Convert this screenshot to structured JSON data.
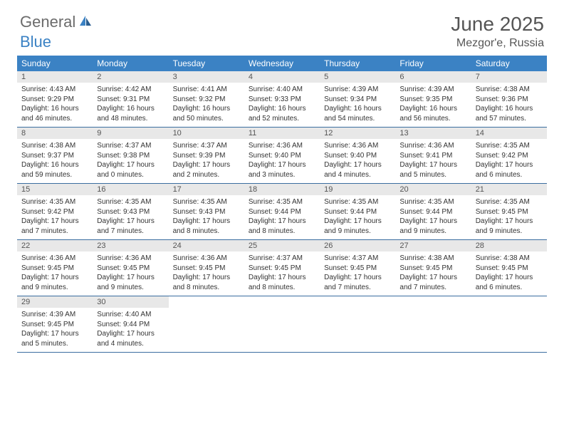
{
  "logo": {
    "general": "General",
    "blue": "Blue"
  },
  "title": "June 2025",
  "location": "Mezgor'e, Russia",
  "colors": {
    "header_bg": "#3b82c4",
    "daynum_bg": "#e8e8e8",
    "border": "#3b6ea0",
    "text": "#333333",
    "title_text": "#555555"
  },
  "weekdays": [
    "Sunday",
    "Monday",
    "Tuesday",
    "Wednesday",
    "Thursday",
    "Friday",
    "Saturday"
  ],
  "days": [
    {
      "n": "1",
      "sr": "Sunrise: 4:43 AM",
      "ss": "Sunset: 9:29 PM",
      "d1": "Daylight: 16 hours",
      "d2": "and 46 minutes."
    },
    {
      "n": "2",
      "sr": "Sunrise: 4:42 AM",
      "ss": "Sunset: 9:31 PM",
      "d1": "Daylight: 16 hours",
      "d2": "and 48 minutes."
    },
    {
      "n": "3",
      "sr": "Sunrise: 4:41 AM",
      "ss": "Sunset: 9:32 PM",
      "d1": "Daylight: 16 hours",
      "d2": "and 50 minutes."
    },
    {
      "n": "4",
      "sr": "Sunrise: 4:40 AM",
      "ss": "Sunset: 9:33 PM",
      "d1": "Daylight: 16 hours",
      "d2": "and 52 minutes."
    },
    {
      "n": "5",
      "sr": "Sunrise: 4:39 AM",
      "ss": "Sunset: 9:34 PM",
      "d1": "Daylight: 16 hours",
      "d2": "and 54 minutes."
    },
    {
      "n": "6",
      "sr": "Sunrise: 4:39 AM",
      "ss": "Sunset: 9:35 PM",
      "d1": "Daylight: 16 hours",
      "d2": "and 56 minutes."
    },
    {
      "n": "7",
      "sr": "Sunrise: 4:38 AM",
      "ss": "Sunset: 9:36 PM",
      "d1": "Daylight: 16 hours",
      "d2": "and 57 minutes."
    },
    {
      "n": "8",
      "sr": "Sunrise: 4:38 AM",
      "ss": "Sunset: 9:37 PM",
      "d1": "Daylight: 16 hours",
      "d2": "and 59 minutes."
    },
    {
      "n": "9",
      "sr": "Sunrise: 4:37 AM",
      "ss": "Sunset: 9:38 PM",
      "d1": "Daylight: 17 hours",
      "d2": "and 0 minutes."
    },
    {
      "n": "10",
      "sr": "Sunrise: 4:37 AM",
      "ss": "Sunset: 9:39 PM",
      "d1": "Daylight: 17 hours",
      "d2": "and 2 minutes."
    },
    {
      "n": "11",
      "sr": "Sunrise: 4:36 AM",
      "ss": "Sunset: 9:40 PM",
      "d1": "Daylight: 17 hours",
      "d2": "and 3 minutes."
    },
    {
      "n": "12",
      "sr": "Sunrise: 4:36 AM",
      "ss": "Sunset: 9:40 PM",
      "d1": "Daylight: 17 hours",
      "d2": "and 4 minutes."
    },
    {
      "n": "13",
      "sr": "Sunrise: 4:36 AM",
      "ss": "Sunset: 9:41 PM",
      "d1": "Daylight: 17 hours",
      "d2": "and 5 minutes."
    },
    {
      "n": "14",
      "sr": "Sunrise: 4:35 AM",
      "ss": "Sunset: 9:42 PM",
      "d1": "Daylight: 17 hours",
      "d2": "and 6 minutes."
    },
    {
      "n": "15",
      "sr": "Sunrise: 4:35 AM",
      "ss": "Sunset: 9:42 PM",
      "d1": "Daylight: 17 hours",
      "d2": "and 7 minutes."
    },
    {
      "n": "16",
      "sr": "Sunrise: 4:35 AM",
      "ss": "Sunset: 9:43 PM",
      "d1": "Daylight: 17 hours",
      "d2": "and 7 minutes."
    },
    {
      "n": "17",
      "sr": "Sunrise: 4:35 AM",
      "ss": "Sunset: 9:43 PM",
      "d1": "Daylight: 17 hours",
      "d2": "and 8 minutes."
    },
    {
      "n": "18",
      "sr": "Sunrise: 4:35 AM",
      "ss": "Sunset: 9:44 PM",
      "d1": "Daylight: 17 hours",
      "d2": "and 8 minutes."
    },
    {
      "n": "19",
      "sr": "Sunrise: 4:35 AM",
      "ss": "Sunset: 9:44 PM",
      "d1": "Daylight: 17 hours",
      "d2": "and 9 minutes."
    },
    {
      "n": "20",
      "sr": "Sunrise: 4:35 AM",
      "ss": "Sunset: 9:44 PM",
      "d1": "Daylight: 17 hours",
      "d2": "and 9 minutes."
    },
    {
      "n": "21",
      "sr": "Sunrise: 4:35 AM",
      "ss": "Sunset: 9:45 PM",
      "d1": "Daylight: 17 hours",
      "d2": "and 9 minutes."
    },
    {
      "n": "22",
      "sr": "Sunrise: 4:36 AM",
      "ss": "Sunset: 9:45 PM",
      "d1": "Daylight: 17 hours",
      "d2": "and 9 minutes."
    },
    {
      "n": "23",
      "sr": "Sunrise: 4:36 AM",
      "ss": "Sunset: 9:45 PM",
      "d1": "Daylight: 17 hours",
      "d2": "and 9 minutes."
    },
    {
      "n": "24",
      "sr": "Sunrise: 4:36 AM",
      "ss": "Sunset: 9:45 PM",
      "d1": "Daylight: 17 hours",
      "d2": "and 8 minutes."
    },
    {
      "n": "25",
      "sr": "Sunrise: 4:37 AM",
      "ss": "Sunset: 9:45 PM",
      "d1": "Daylight: 17 hours",
      "d2": "and 8 minutes."
    },
    {
      "n": "26",
      "sr": "Sunrise: 4:37 AM",
      "ss": "Sunset: 9:45 PM",
      "d1": "Daylight: 17 hours",
      "d2": "and 7 minutes."
    },
    {
      "n": "27",
      "sr": "Sunrise: 4:38 AM",
      "ss": "Sunset: 9:45 PM",
      "d1": "Daylight: 17 hours",
      "d2": "and 7 minutes."
    },
    {
      "n": "28",
      "sr": "Sunrise: 4:38 AM",
      "ss": "Sunset: 9:45 PM",
      "d1": "Daylight: 17 hours",
      "d2": "and 6 minutes."
    },
    {
      "n": "29",
      "sr": "Sunrise: 4:39 AM",
      "ss": "Sunset: 9:45 PM",
      "d1": "Daylight: 17 hours",
      "d2": "and 5 minutes."
    },
    {
      "n": "30",
      "sr": "Sunrise: 4:40 AM",
      "ss": "Sunset: 9:44 PM",
      "d1": "Daylight: 17 hours",
      "d2": "and 4 minutes."
    }
  ]
}
